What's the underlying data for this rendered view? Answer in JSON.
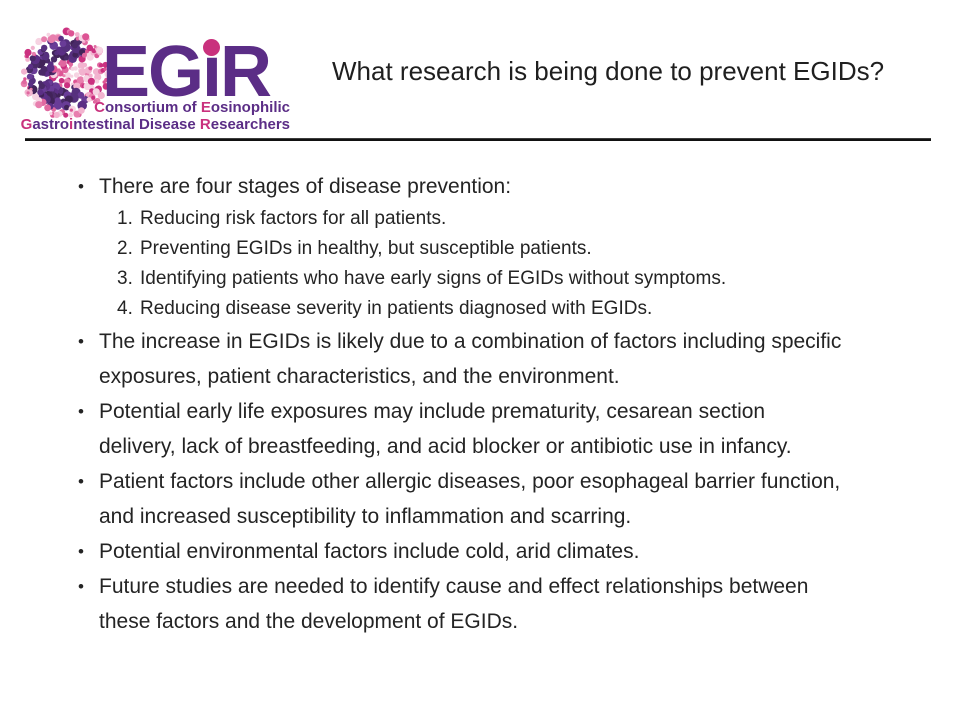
{
  "theme": {
    "purple": "#5b2d86",
    "pink": "#c9317d",
    "text": "#1f1f1f",
    "rule": "#1a1a1a",
    "background": "#ffffff",
    "dot_colors_pink": [
      "#f2b3cf",
      "#e87fae",
      "#dd5494",
      "#cb3180",
      "#f6d3e2",
      "#e068a0"
    ],
    "dot_colors_purple": [
      "#5b2f85",
      "#4a2a68",
      "#693c97",
      "#412359",
      "#56307e"
    ]
  },
  "logo": {
    "acronym": "EGiR",
    "acronym_pre": "EG",
    "acronym_i": "i",
    "acronym_post": "R",
    "tagline_line1": [
      {
        "t": "C",
        "hl": true
      },
      {
        "t": "onsortium of ",
        "hl": false
      },
      {
        "t": "E",
        "hl": true
      },
      {
        "t": "osinophilic",
        "hl": false
      }
    ],
    "tagline_line2": [
      {
        "t": "G",
        "hl": true
      },
      {
        "t": "astro",
        "hl": false
      },
      {
        "t": "i",
        "hl": true
      },
      {
        "t": "ntestinal Disease ",
        "hl": false
      },
      {
        "t": "R",
        "hl": true
      },
      {
        "t": "esearchers",
        "hl": false
      }
    ]
  },
  "header": {
    "title": "What research is being done to prevent EGIDs?"
  },
  "content": {
    "bullet_char": "•",
    "items": [
      {
        "type": "bullet",
        "lines": [
          "There are four stages of disease prevention:"
        ]
      },
      {
        "type": "numbered",
        "number": "1.",
        "text": "Reducing risk factors for all patients."
      },
      {
        "type": "numbered",
        "number": "2.",
        "text": "Preventing EGIDs in healthy, but susceptible patients."
      },
      {
        "type": "numbered",
        "number": "3.",
        "text": "Identifying patients who have early signs of EGIDs without symptoms."
      },
      {
        "type": "numbered",
        "number": "4.",
        "text": "Reducing disease severity in patients diagnosed with EGIDs."
      },
      {
        "type": "bullet",
        "lines": [
          "The increase in EGIDs is likely due to a combination of factors including specific",
          "exposures, patient characteristics, and the environment."
        ]
      },
      {
        "type": "bullet",
        "lines": [
          "Potential early life exposures may include prematurity, cesarean section",
          "delivery, lack of breastfeeding, and acid blocker or antibiotic use in infancy."
        ]
      },
      {
        "type": "bullet",
        "lines": [
          "Patient factors include other allergic diseases, poor esophageal barrier function,",
          "and increased susceptibility to inflammation and scarring."
        ]
      },
      {
        "type": "bullet",
        "lines": [
          "Potential environmental factors include cold, arid climates."
        ]
      },
      {
        "type": "bullet",
        "lines": [
          "Future studies are needed to identify cause and effect relationships between",
          "these factors and the development of EGIDs."
        ]
      }
    ]
  }
}
